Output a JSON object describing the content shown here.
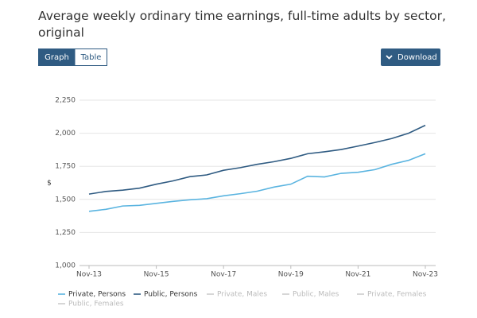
{
  "controls": {
    "graph": "Graph",
    "table": "Table",
    "download": "Download"
  },
  "chart_data": {
    "type": "line",
    "title": "Average weekly ordinary time earnings, full-time adults by sector, original",
    "y_label": "$",
    "categories": [
      "Nov-13",
      null,
      null,
      null,
      "Nov-15",
      null,
      null,
      null,
      "Nov-17",
      null,
      null,
      null,
      "Nov-19",
      null,
      null,
      null,
      "Nov-21",
      null,
      null,
      null,
      "Nov-23"
    ],
    "series": [
      {
        "name": "Private, Persons",
        "color": "#5ab4e0",
        "values": [
          1410,
          1425,
          1450,
          1455,
          1470,
          1485,
          1497,
          1505,
          1527,
          1543,
          1562,
          1593,
          1615,
          1675,
          1670,
          1697,
          1705,
          1725,
          1765,
          1795,
          1845
        ]
      },
      {
        "name": "Public, Persons",
        "color": "#2f5b82",
        "values": [
          1540,
          1560,
          1570,
          1585,
          1615,
          1640,
          1672,
          1685,
          1720,
          1740,
          1765,
          1785,
          1810,
          1845,
          1860,
          1877,
          1903,
          1930,
          1960,
          2000,
          2060
        ]
      }
    ],
    "inactive_series": [
      "Private, Males",
      "Public, Males",
      "Private, Females",
      "Public, Females"
    ],
    "inactive_color": "#cccccc",
    "ylim": [
      1000,
      2250
    ],
    "yticks": [
      {
        "value": 1000,
        "label": "1,000"
      },
      {
        "value": 1250,
        "label": "1,250"
      },
      {
        "value": 1500,
        "label": "1,500"
      },
      {
        "value": 1750,
        "label": "1,750"
      },
      {
        "value": 2000,
        "label": "2,000"
      },
      {
        "value": 2250,
        "label": "2,250"
      }
    ],
    "grid": true
  }
}
